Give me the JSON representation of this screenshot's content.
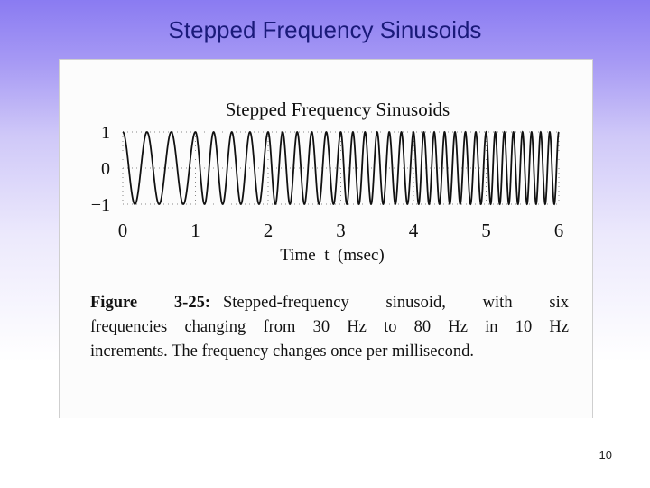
{
  "slide": {
    "title": "Stepped Frequency Sinusoids",
    "page_number": "10"
  },
  "figure": {
    "label": "Figure 3-25:",
    "caption_lines": [
      "Stepped-frequency sinusoid, with six",
      "frequencies changing from 30 Hz to 80 Hz in 10 Hz",
      "increments. The frequency changes once per millisecond."
    ]
  },
  "chart_data": {
    "type": "line",
    "title": "Stepped Frequency Sinusoids",
    "xlabel": "Time  t  (msec)",
    "ylabel": "",
    "xlim": [
      0,
      6
    ],
    "ylim": [
      -1,
      1
    ],
    "x_ticks": [
      "0",
      "1",
      "2",
      "3",
      "4",
      "5",
      "6"
    ],
    "y_ticks": [
      "1",
      "0",
      "−1"
    ],
    "grid": true,
    "segments": [
      {
        "t_start": 0,
        "t_end": 1,
        "frequency": 30
      },
      {
        "t_start": 1,
        "t_end": 2,
        "frequency": 40
      },
      {
        "t_start": 2,
        "t_end": 3,
        "frequency": 50
      },
      {
        "t_start": 3,
        "t_end": 4,
        "frequency": 60
      },
      {
        "t_start": 4,
        "t_end": 5,
        "frequency": 70
      },
      {
        "t_start": 5,
        "t_end": 6,
        "frequency": 80
      }
    ]
  }
}
